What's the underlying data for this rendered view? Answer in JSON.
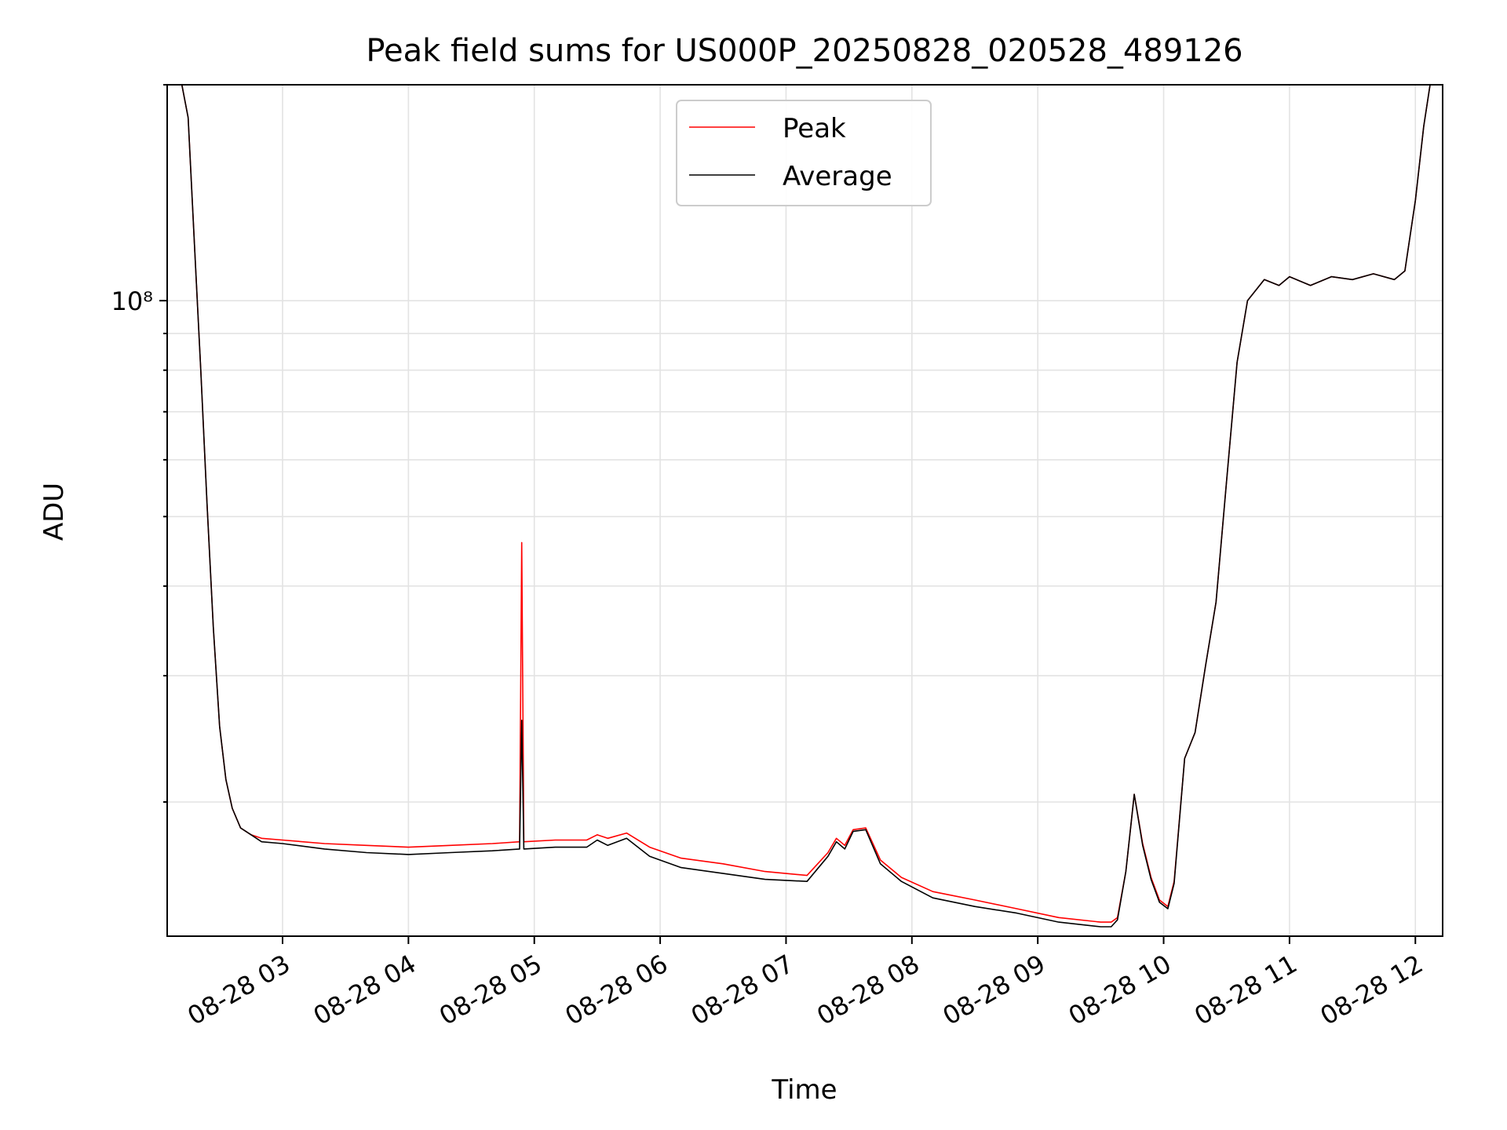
{
  "chart_data": {
    "type": "line",
    "title": "Peak field sums for US000P_20250828_020528_489126",
    "xlabel": "Time",
    "ylabel": "ADU",
    "yscale": "log",
    "xlim": [
      "2025-08-28 02:05",
      "2025-08-28 12:13"
    ],
    "ylim": [
      13000000.0,
      200000000.0
    ],
    "grid": true,
    "legend": "upper-center",
    "x_tick_labels": [
      "08-28 03",
      "08-28 04",
      "08-28 05",
      "08-28 06",
      "08-28 07",
      "08-28 08",
      "08-28 09",
      "08-28 10",
      "08-28 11",
      "08-28 12"
    ],
    "x_ticks": [
      "2025-08-28 03:00",
      "2025-08-28 04:00",
      "2025-08-28 05:00",
      "2025-08-28 06:00",
      "2025-08-28 07:00",
      "2025-08-28 08:00",
      "2025-08-28 09:00",
      "2025-08-28 10:00",
      "2025-08-28 11:00",
      "2025-08-28 12:00"
    ],
    "y_major_tick_label": "10⁸",
    "y_major_tick": 100000000.0,
    "series": [
      {
        "name": "Peak",
        "color": "#ff0000",
        "x": [
          "2025-08-28 02:05",
          "2025-08-28 02:12",
          "2025-08-28 02:15",
          "2025-08-28 02:18",
          "2025-08-28 02:21",
          "2025-08-28 02:24",
          "2025-08-28 02:27",
          "2025-08-28 02:30",
          "2025-08-28 02:33",
          "2025-08-28 02:36",
          "2025-08-28 02:40",
          "2025-08-28 02:45",
          "2025-08-28 02:50",
          "2025-08-28 03:00",
          "2025-08-28 03:20",
          "2025-08-28 03:40",
          "2025-08-28 04:00",
          "2025-08-28 04:20",
          "2025-08-28 04:40",
          "2025-08-28 04:53",
          "2025-08-28 04:54",
          "2025-08-28 04:55",
          "2025-08-28 05:10",
          "2025-08-28 05:25",
          "2025-08-28 05:30",
          "2025-08-28 05:35",
          "2025-08-28 05:44",
          "2025-08-28 05:55",
          "2025-08-28 06:10",
          "2025-08-28 06:30",
          "2025-08-28 06:50",
          "2025-08-28 07:10",
          "2025-08-28 07:20",
          "2025-08-28 07:24",
          "2025-08-28 07:28",
          "2025-08-28 07:32",
          "2025-08-28 07:38",
          "2025-08-28 07:45",
          "2025-08-28 07:55",
          "2025-08-28 08:10",
          "2025-08-28 08:30",
          "2025-08-28 08:50",
          "2025-08-28 09:10",
          "2025-08-28 09:30",
          "2025-08-28 09:35",
          "2025-08-28 09:38",
          "2025-08-28 09:42",
          "2025-08-28 09:46",
          "2025-08-28 09:50",
          "2025-08-28 09:54",
          "2025-08-28 09:58",
          "2025-08-28 10:02",
          "2025-08-28 10:05",
          "2025-08-28 10:10",
          "2025-08-28 10:15",
          "2025-08-28 10:20",
          "2025-08-28 10:25",
          "2025-08-28 10:30",
          "2025-08-28 10:35",
          "2025-08-28 10:40",
          "2025-08-28 10:48",
          "2025-08-28 10:55",
          "2025-08-28 11:00",
          "2025-08-28 11:10",
          "2025-08-28 11:20",
          "2025-08-28 11:30",
          "2025-08-28 11:40",
          "2025-08-28 11:50",
          "2025-08-28 11:55",
          "2025-08-28 12:00",
          "2025-08-28 12:04",
          "2025-08-28 12:07"
        ],
        "values": [
          200000000.0,
          200000000.0,
          180000000.0,
          120000000.0,
          80000000.0,
          52000000.0,
          35000000.0,
          25500000.0,
          21500000.0,
          19600000.0,
          18400000.0,
          18000000.0,
          17800000.0,
          17700000.0,
          17500000.0,
          17400000.0,
          17300000.0,
          17400000.0,
          17500000.0,
          17600000.0,
          46000000.0,
          17600000.0,
          17700000.0,
          17700000.0,
          18000000.0,
          17800000.0,
          18100000.0,
          17300000.0,
          16700000.0,
          16400000.0,
          16000000.0,
          15800000.0,
          17000000.0,
          17800000.0,
          17400000.0,
          18300000.0,
          18400000.0,
          16600000.0,
          15700000.0,
          15000000.0,
          14600000.0,
          14200000.0,
          13800000.0,
          13600000.0,
          13600000.0,
          13800000.0,
          16000000.0,
          20500000.0,
          17500000.0,
          15700000.0,
          14600000.0,
          14300000.0,
          15500000.0,
          23000000.0,
          25000000.0,
          31000000.0,
          38000000.0,
          56000000.0,
          82000000.0,
          100000000.0,
          107000000.0,
          105000000.0,
          108000000.0,
          105000000.0,
          108000000.0,
          107000000.0,
          109000000.0,
          107000000.0,
          110000000.0,
          138000000.0,
          175000000.0,
          200000000.0
        ]
      },
      {
        "name": "Average",
        "color": "#000000",
        "x": [
          "2025-08-28 02:05",
          "2025-08-28 02:12",
          "2025-08-28 02:15",
          "2025-08-28 02:18",
          "2025-08-28 02:21",
          "2025-08-28 02:24",
          "2025-08-28 02:27",
          "2025-08-28 02:30",
          "2025-08-28 02:33",
          "2025-08-28 02:36",
          "2025-08-28 02:40",
          "2025-08-28 02:45",
          "2025-08-28 02:50",
          "2025-08-28 03:00",
          "2025-08-28 03:20",
          "2025-08-28 03:40",
          "2025-08-28 04:00",
          "2025-08-28 04:20",
          "2025-08-28 04:40",
          "2025-08-28 04:53",
          "2025-08-28 04:54",
          "2025-08-28 04:55",
          "2025-08-28 05:10",
          "2025-08-28 05:25",
          "2025-08-28 05:30",
          "2025-08-28 05:35",
          "2025-08-28 05:44",
          "2025-08-28 05:55",
          "2025-08-28 06:10",
          "2025-08-28 06:30",
          "2025-08-28 06:50",
          "2025-08-28 07:10",
          "2025-08-28 07:20",
          "2025-08-28 07:24",
          "2025-08-28 07:28",
          "2025-08-28 07:32",
          "2025-08-28 07:38",
          "2025-08-28 07:45",
          "2025-08-28 07:55",
          "2025-08-28 08:10",
          "2025-08-28 08:30",
          "2025-08-28 08:50",
          "2025-08-28 09:10",
          "2025-08-28 09:30",
          "2025-08-28 09:35",
          "2025-08-28 09:38",
          "2025-08-28 09:42",
          "2025-08-28 09:46",
          "2025-08-28 09:50",
          "2025-08-28 09:54",
          "2025-08-28 09:58",
          "2025-08-28 10:02",
          "2025-08-28 10:05",
          "2025-08-28 10:10",
          "2025-08-28 10:15",
          "2025-08-28 10:20",
          "2025-08-28 10:25",
          "2025-08-28 10:30",
          "2025-08-28 10:35",
          "2025-08-28 10:40",
          "2025-08-28 10:48",
          "2025-08-28 10:55",
          "2025-08-28 11:00",
          "2025-08-28 11:10",
          "2025-08-28 11:20",
          "2025-08-28 11:30",
          "2025-08-28 11:40",
          "2025-08-28 11:50",
          "2025-08-28 11:55",
          "2025-08-28 12:00",
          "2025-08-28 12:04",
          "2025-08-28 12:07"
        ],
        "values": [
          200000000.0,
          200000000.0,
          180000000.0,
          120000000.0,
          80000000.0,
          52000000.0,
          35000000.0,
          25500000.0,
          21500000.0,
          19600000.0,
          18400000.0,
          18000000.0,
          17600000.0,
          17500000.0,
          17200000.0,
          17000000.0,
          16900000.0,
          17000000.0,
          17100000.0,
          17200000.0,
          26000000.0,
          17200000.0,
          17300000.0,
          17300000.0,
          17700000.0,
          17400000.0,
          17800000.0,
          16800000.0,
          16200000.0,
          15900000.0,
          15600000.0,
          15500000.0,
          16800000.0,
          17600000.0,
          17200000.0,
          18200000.0,
          18300000.0,
          16400000.0,
          15500000.0,
          14700000.0,
          14300000.0,
          14000000.0,
          13600000.0,
          13400000.0,
          13400000.0,
          13700000.0,
          16000000.0,
          20500000.0,
          17400000.0,
          15600000.0,
          14500000.0,
          14200000.0,
          15400000.0,
          23000000.0,
          25000000.0,
          31000000.0,
          38000000.0,
          56000000.0,
          82000000.0,
          100000000.0,
          107000000.0,
          105000000.0,
          108000000.0,
          105000000.0,
          108000000.0,
          107000000.0,
          109000000.0,
          107000000.0,
          110000000.0,
          138000000.0,
          175000000.0,
          200000000.0
        ]
      }
    ]
  }
}
